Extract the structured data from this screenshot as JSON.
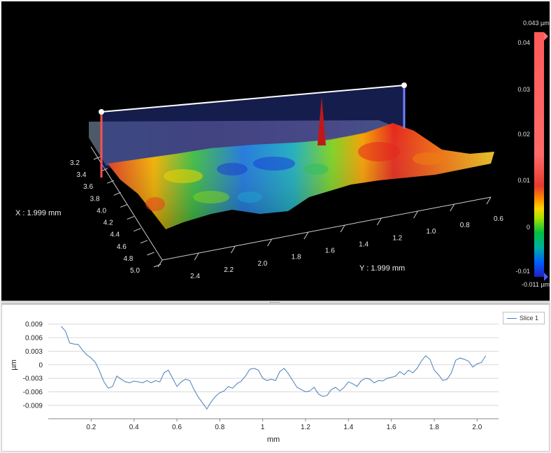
{
  "view3d": {
    "x_readout": "X : 1.999 mm",
    "y_readout": "Y : 1.999 mm",
    "x_ticks": [
      "3.2",
      "3.4",
      "3.6",
      "3.8",
      "4.0",
      "4.2",
      "4.4",
      "4.6",
      "4.8",
      "5.0"
    ],
    "y_ticks": [
      "2.4",
      "2.2",
      "2.0",
      "1.8",
      "1.6",
      "1.4",
      "1.2",
      "1.0",
      "0.8",
      "0.6"
    ],
    "colorbar": {
      "max_label": "0.043 µm",
      "min_label": "-0.011 µm",
      "ticks": [
        "0.04",
        "0.03",
        "0.02",
        "0.01",
        "0",
        "-0.01"
      ],
      "colors": [
        "#ff5a5a",
        "#ff6a6a",
        "#e63b2e",
        "#ff8a00",
        "#ffd400",
        "#a8e000",
        "#00c040",
        "#00b0a0",
        "#0060ff",
        "#2020c0"
      ]
    }
  },
  "chart_data": {
    "type": "line",
    "title": "",
    "xlabel": "mm",
    "ylabel": "µm",
    "xlim": [
      0,
      2.1
    ],
    "ylim": [
      -0.0115,
      0.0105
    ],
    "x_ticks": [
      "0.2",
      "0.4",
      "0.6",
      "0.8",
      "1",
      "1.2",
      "1.4",
      "1.6",
      "1.8",
      "2.0"
    ],
    "y_ticks": [
      "0.009",
      "0.006",
      "0.003",
      "0",
      "-0.003",
      "-0.006",
      "-0.009"
    ],
    "legend": "top-right",
    "grid": true,
    "series": [
      {
        "name": "Slice 1",
        "color": "#4a7ebb",
        "x": [
          0.06,
          0.08,
          0.1,
          0.12,
          0.14,
          0.16,
          0.18,
          0.2,
          0.22,
          0.24,
          0.26,
          0.28,
          0.3,
          0.32,
          0.34,
          0.36,
          0.38,
          0.4,
          0.42,
          0.44,
          0.46,
          0.48,
          0.5,
          0.52,
          0.54,
          0.56,
          0.58,
          0.6,
          0.62,
          0.64,
          0.66,
          0.68,
          0.7,
          0.72,
          0.74,
          0.76,
          0.78,
          0.8,
          0.82,
          0.84,
          0.86,
          0.88,
          0.9,
          0.92,
          0.94,
          0.96,
          0.98,
          1.0,
          1.02,
          1.04,
          1.06,
          1.08,
          1.1,
          1.12,
          1.14,
          1.16,
          1.18,
          1.2,
          1.22,
          1.24,
          1.26,
          1.28,
          1.3,
          1.32,
          1.34,
          1.36,
          1.38,
          1.4,
          1.42,
          1.44,
          1.46,
          1.48,
          1.5,
          1.52,
          1.54,
          1.56,
          1.58,
          1.6,
          1.62,
          1.64,
          1.66,
          1.68,
          1.7,
          1.72,
          1.74,
          1.76,
          1.78,
          1.8,
          1.82,
          1.84,
          1.86,
          1.88,
          1.9,
          1.92,
          1.94,
          1.96,
          1.98,
          2.0,
          2.02,
          2.04
        ],
        "values": [
          0.0085,
          0.0075,
          0.0048,
          0.0046,
          0.0045,
          0.0032,
          0.0022,
          0.0015,
          0.0005,
          -0.0015,
          -0.0038,
          -0.0052,
          -0.0048,
          -0.0025,
          -0.0032,
          -0.0038,
          -0.004,
          -0.0036,
          -0.0038,
          -0.004,
          -0.0035,
          -0.004,
          -0.0035,
          -0.0038,
          -0.0018,
          -0.0012,
          -0.003,
          -0.0048,
          -0.0038,
          -0.0032,
          -0.0035,
          -0.0055,
          -0.0072,
          -0.0085,
          -0.0098,
          -0.0082,
          -0.007,
          -0.0062,
          -0.0058,
          -0.0048,
          -0.0052,
          -0.0042,
          -0.0036,
          -0.0025,
          -0.001,
          -0.0008,
          -0.0012,
          -0.003,
          -0.0035,
          -0.0032,
          -0.0035,
          -0.0015,
          -0.0008,
          -0.002,
          -0.0035,
          -0.005,
          -0.0055,
          -0.006,
          -0.0058,
          -0.005,
          -0.0065,
          -0.007,
          -0.0068,
          -0.0055,
          -0.005,
          -0.0058,
          -0.005,
          -0.0038,
          -0.0042,
          -0.0048,
          -0.0035,
          -0.003,
          -0.0032,
          -0.004,
          -0.0035,
          -0.0036,
          -0.003,
          -0.0028,
          -0.0025,
          -0.0015,
          -0.0022,
          -0.0012,
          -0.0018,
          -0.0008,
          0.0008,
          0.002,
          0.0012,
          -0.0012,
          -0.0022,
          -0.0035,
          -0.0032,
          -0.0018,
          0.001,
          0.0015,
          0.0012,
          0.0008,
          -0.0005,
          0.0002,
          0.0005,
          0.002
        ]
      }
    ]
  }
}
